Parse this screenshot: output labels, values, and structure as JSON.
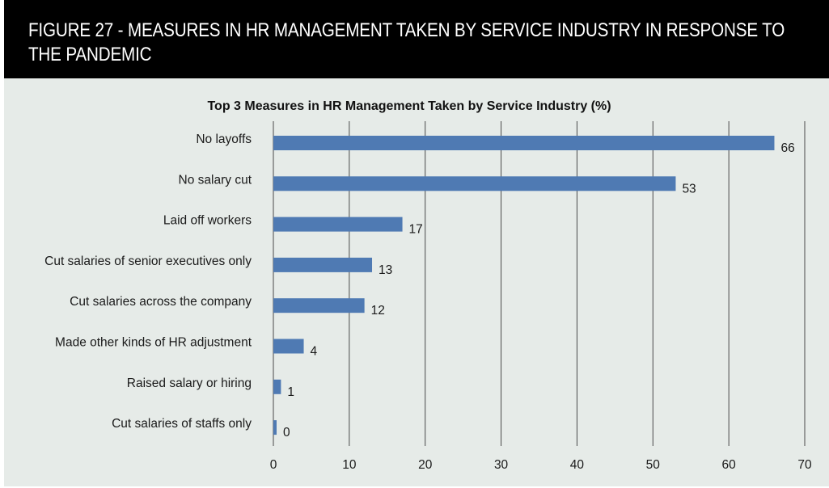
{
  "figure": {
    "title_line1": "FIGURE 27 - MEASURES IN HR MANAGEMENT TAKEN BY SERVICE INDUSTRY IN RESPONSE TO",
    "title_line2": "THE PANDEMIC"
  },
  "colors": {
    "bar": "#4f7ab3",
    "grid": "#4a4a4a",
    "header_bg": "#000000",
    "panel_bg": "#e6ebe8"
  },
  "chart_data": {
    "type": "bar",
    "orientation": "horizontal",
    "title": "Top 3 Measures in HR Management Taken by Service Industry (%)",
    "categories": [
      "No layoffs",
      "No salary cut",
      "Laid off workers",
      "Cut salaries of senior executives only",
      "Cut salaries across the company",
      "Made other kinds of HR adjustment",
      "Raised salary or hiring",
      "Cut salaries of staffs only"
    ],
    "values": [
      66,
      53,
      17,
      13,
      12,
      4,
      1,
      0
    ],
    "value_labels": [
      "66",
      "53",
      "17",
      "13",
      "12",
      "4",
      "1",
      "0"
    ],
    "xlim": [
      0,
      70
    ],
    "xticks": [
      0,
      10,
      20,
      30,
      40,
      50,
      60,
      70
    ],
    "xtick_labels": [
      "0",
      "10",
      "20",
      "30",
      "40",
      "50",
      "60",
      "70"
    ],
    "grid": "vertical",
    "legend": "none"
  }
}
